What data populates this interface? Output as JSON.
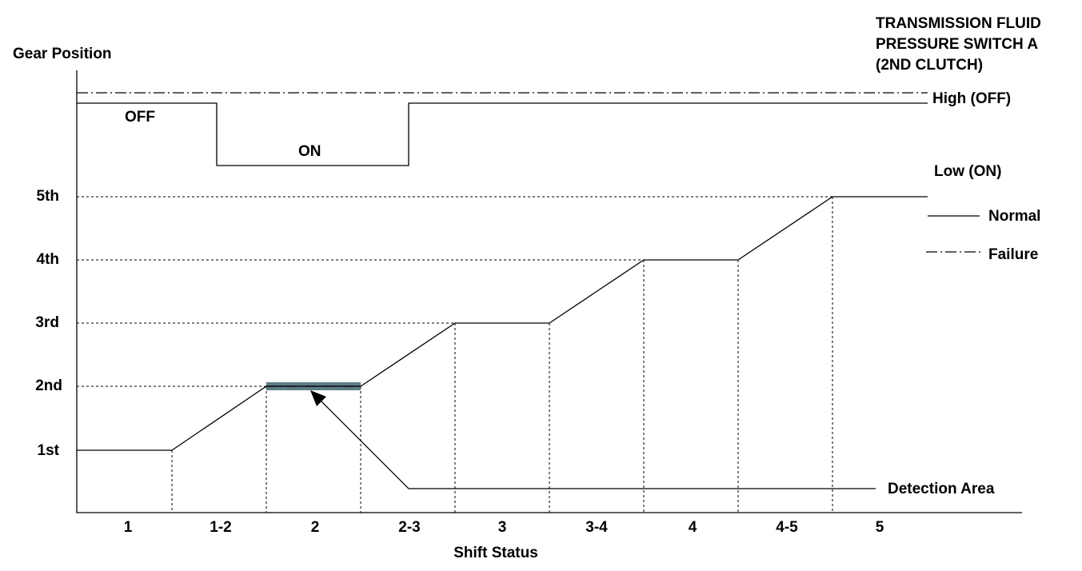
{
  "y_axis_title": "Gear Position",
  "switch_title": [
    "TRANSMISSION FLUID",
    "PRESSURE SWITCH A",
    "(2ND CLUTCH)"
  ],
  "switch_levels": {
    "high": "High (OFF)",
    "low": "Low (ON)"
  },
  "switch_states": {
    "off": "OFF",
    "on": "ON"
  },
  "gears": [
    "5th",
    "4th",
    "3rd",
    "2nd",
    "1st"
  ],
  "legend": {
    "normal": "Normal",
    "failure": "Failure"
  },
  "detection": "Detection Area",
  "shift_states": [
    "1",
    "1-2",
    "2",
    "2-3",
    "3",
    "3-4",
    "4",
    "4-5",
    "5"
  ],
  "x_axis_title": "Shift Status"
}
